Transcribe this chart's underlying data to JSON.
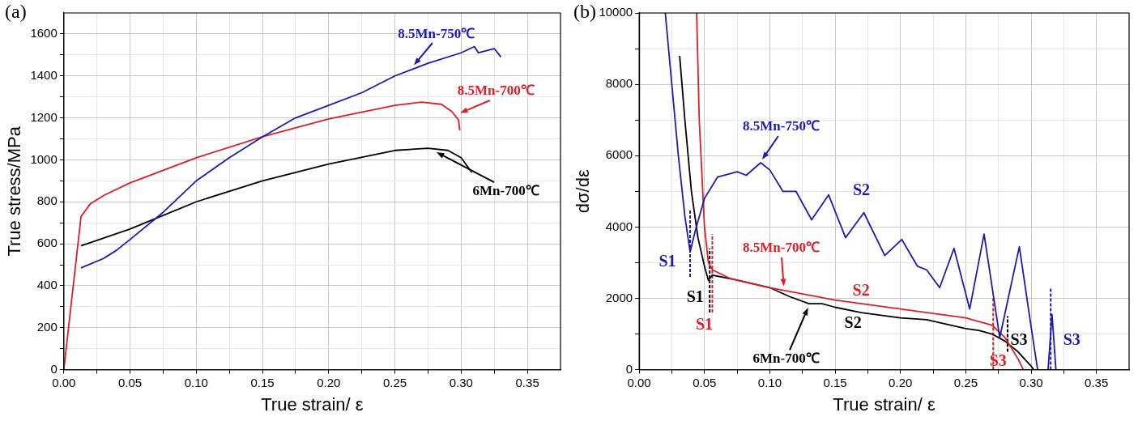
{
  "chart_data": [
    {
      "type": "line",
      "title": "(a)",
      "xlabel": "True strain/ ε",
      "ylabel": "True stress/MPa",
      "xlim": [
        0,
        0.375
      ],
      "ylim": [
        0,
        1700
      ],
      "grid": true,
      "marker": "none",
      "xticks": [
        {
          "value": 0,
          "label": "0.00"
        },
        {
          "value": 0.025,
          "label": null
        },
        {
          "value": 0.05,
          "label": "0.05"
        },
        {
          "value": 0.075,
          "label": null
        },
        {
          "value": 0.1,
          "label": "0.10"
        },
        {
          "value": 0.125,
          "label": null
        },
        {
          "value": 0.15,
          "label": "0.15"
        },
        {
          "value": 0.175,
          "label": null
        },
        {
          "value": 0.2,
          "label": "0.20"
        },
        {
          "value": 0.225,
          "label": null
        },
        {
          "value": 0.25,
          "label": "0.25"
        },
        {
          "value": 0.275,
          "label": null
        },
        {
          "value": 0.3,
          "label": "0.30"
        },
        {
          "value": 0.325,
          "label": null
        },
        {
          "value": 0.35,
          "label": "0.35"
        }
      ],
      "yticks": [
        0,
        {
          "value": 100,
          "label": null
        },
        200,
        {
          "value": 300,
          "label": null
        },
        400,
        {
          "value": 500,
          "label": null
        },
        600,
        {
          "value": 700,
          "label": null
        },
        800,
        {
          "value": 900,
          "label": null
        },
        1000,
        {
          "value": 1100,
          "label": null
        },
        1200,
        {
          "value": 1300,
          "label": null
        },
        1400,
        {
          "value": 1500,
          "label": null
        },
        1600
      ],
      "series": [
        {
          "name": "8.5Mn-750℃",
          "color": "#1a1ab4",
          "x": [
            0.013,
            0.03,
            0.04,
            0.05,
            0.075,
            0.1,
            0.125,
            0.15,
            0.175,
            0.2,
            0.225,
            0.25,
            0.275,
            0.3,
            0.31,
            0.313,
            0.325,
            0.33
          ],
          "values": [
            485,
            530,
            570,
            620,
            750,
            900,
            1010,
            1110,
            1200,
            1260,
            1320,
            1400,
            1460,
            1510,
            1540,
            1510,
            1530,
            1490
          ]
        },
        {
          "name": "8.5Mn-700℃",
          "color": "#dc1e28",
          "x": [
            0,
            0.013,
            0.02,
            0.03,
            0.05,
            0.075,
            0.1,
            0.15,
            0.2,
            0.25,
            0.27,
            0.285,
            0.293,
            0.298,
            0.299
          ],
          "values": [
            0,
            730,
            790,
            830,
            890,
            950,
            1010,
            1110,
            1195,
            1260,
            1275,
            1265,
            1230,
            1190,
            1140
          ]
        },
        {
          "name": "6Mn-700℃",
          "color": "#000000",
          "x": [
            0.013,
            0.05,
            0.1,
            0.15,
            0.2,
            0.25,
            0.275,
            0.29,
            0.3,
            0.308
          ],
          "values": [
            590,
            670,
            800,
            900,
            980,
            1045,
            1055,
            1045,
            1010,
            940
          ]
        }
      ]
    },
    {
      "type": "line",
      "title": "(b)",
      "xlabel": "True strain/ ε",
      "ylabel": "dσ/dε",
      "xlim": [
        0,
        0.375
      ],
      "ylim": [
        0,
        10000
      ],
      "grid": true,
      "marker": "none",
      "xticks": [
        {
          "value": 0,
          "label": "0.00"
        },
        {
          "value": 0.025,
          "label": null
        },
        {
          "value": 0.05,
          "label": "0.05"
        },
        {
          "value": 0.075,
          "label": null
        },
        {
          "value": 0.1,
          "label": "0.10"
        },
        {
          "value": 0.125,
          "label": null
        },
        {
          "value": 0.15,
          "label": "0.15"
        },
        {
          "value": 0.175,
          "label": null
        },
        {
          "value": 0.2,
          "label": "0.20"
        },
        {
          "value": 0.225,
          "label": null
        },
        {
          "value": 0.25,
          "label": "0.25"
        },
        {
          "value": 0.275,
          "label": null
        },
        {
          "value": 0.3,
          "label": "0.30"
        },
        {
          "value": 0.325,
          "label": null
        },
        {
          "value": 0.35,
          "label": "0.35"
        }
      ],
      "yticks": [
        0,
        {
          "value": 1000,
          "label": null
        },
        2000,
        {
          "value": 3000,
          "label": null
        },
        4000,
        {
          "value": 5000,
          "label": null
        },
        6000,
        {
          "value": 7000,
          "label": null
        },
        8000,
        {
          "value": 9000,
          "label": null
        },
        10000
      ],
      "series": [
        {
          "name": "8.5Mn-750℃",
          "color": "#1a1ab4",
          "x": [
            0.02,
            0.025,
            0.03,
            0.035,
            0.039,
            0.043,
            0.05,
            0.06,
            0.07,
            0.075,
            0.082,
            0.093,
            0.1,
            0.11,
            0.12,
            0.132,
            0.145,
            0.158,
            0.172,
            0.188,
            0.201,
            0.213,
            0.22,
            0.23,
            0.241,
            0.253,
            0.264,
            0.276,
            0.291,
            0.3,
            0.305,
            0.309,
            0.313,
            0.316,
            0.319
          ],
          "values": [
            10000,
            8000,
            6000,
            4300,
            3300,
            3900,
            4800,
            5400,
            5500,
            5550,
            5450,
            5800,
            5600,
            5000,
            5000,
            4200,
            4900,
            3700,
            4400,
            3200,
            3650,
            2900,
            2800,
            2300,
            3400,
            1700,
            3800,
            900,
            3450,
            1200,
            0,
            null,
            0,
            1550,
            0
          ]
        },
        {
          "name": "8.5Mn-700℃",
          "color": "#dc1e28",
          "x": [
            0.044,
            0.046,
            0.05,
            0.053,
            0.056,
            0.07,
            0.1,
            0.15,
            0.2,
            0.25,
            0.27,
            0.28,
            0.29,
            0.294
          ],
          "values": [
            10000,
            7000,
            4000,
            3000,
            2800,
            2550,
            2300,
            1950,
            1700,
            1450,
            1250,
            900,
            300,
            0
          ]
        },
        {
          "name": "6Mn-700℃",
          "color": "#000000",
          "x": [
            0.031,
            0.035,
            0.04,
            0.045,
            0.05,
            0.053,
            0.056,
            0.07,
            0.1,
            0.115,
            0.13,
            0.14,
            0.15,
            0.17,
            0.2,
            0.22,
            0.25,
            0.26,
            0.27,
            0.28,
            0.29,
            0.3,
            0.302
          ],
          "values": [
            8800,
            7000,
            5000,
            3700,
            2900,
            2500,
            2650,
            2550,
            2300,
            2050,
            1850,
            1850,
            1750,
            1600,
            1450,
            1400,
            1150,
            1100,
            1000,
            800,
            500,
            100,
            0
          ]
        },
        {
          "color": "#1a1ab4",
          "line_style": "dashed",
          "x": [
            0.039,
            0.039
          ],
          "values": [
            2600,
            4500
          ]
        },
        {
          "color": "#000000",
          "line_style": "dashed",
          "x": [
            0.054,
            0.054
          ],
          "values": [
            1600,
            3400
          ]
        },
        {
          "color": "#dc1e28",
          "line_style": "dashed",
          "x": [
            0.056,
            0.056
          ],
          "values": [
            1600,
            3800
          ]
        },
        {
          "color": "#dc1e28",
          "line_style": "dashed",
          "x": [
            0.271,
            0.271
          ],
          "values": [
            0,
            2000
          ]
        },
        {
          "color": "#000000",
          "line_style": "dashed",
          "x": [
            0.282,
            0.282
          ],
          "values": [
            500,
            1500
          ]
        },
        {
          "color": "#1a1ab4",
          "line_style": "dashed",
          "x": [
            0.315,
            0.315
          ],
          "values": [
            0,
            2300
          ]
        }
      ],
      "annotations": [
        {
          "text": "S1",
          "x": 0.039,
          "y": 2600
        },
        {
          "text": "S1",
          "x": 0.054,
          "y": 1600
        },
        {
          "text": "S1",
          "x": 0.056,
          "y": 1600
        },
        {
          "text": "S2",
          "x": 0.172,
          "y": 4400
        },
        {
          "text": "S2",
          "x": 0.15,
          "y": 1950
        },
        {
          "text": "S2",
          "x": 0.15,
          "y": 1750
        },
        {
          "text": "S3",
          "x": 0.271,
          "y": 0
        },
        {
          "text": "S3",
          "x": 0.282,
          "y": 500
        },
        {
          "text": "S3",
          "x": 0.315,
          "y": 0
        }
      ]
    }
  ]
}
